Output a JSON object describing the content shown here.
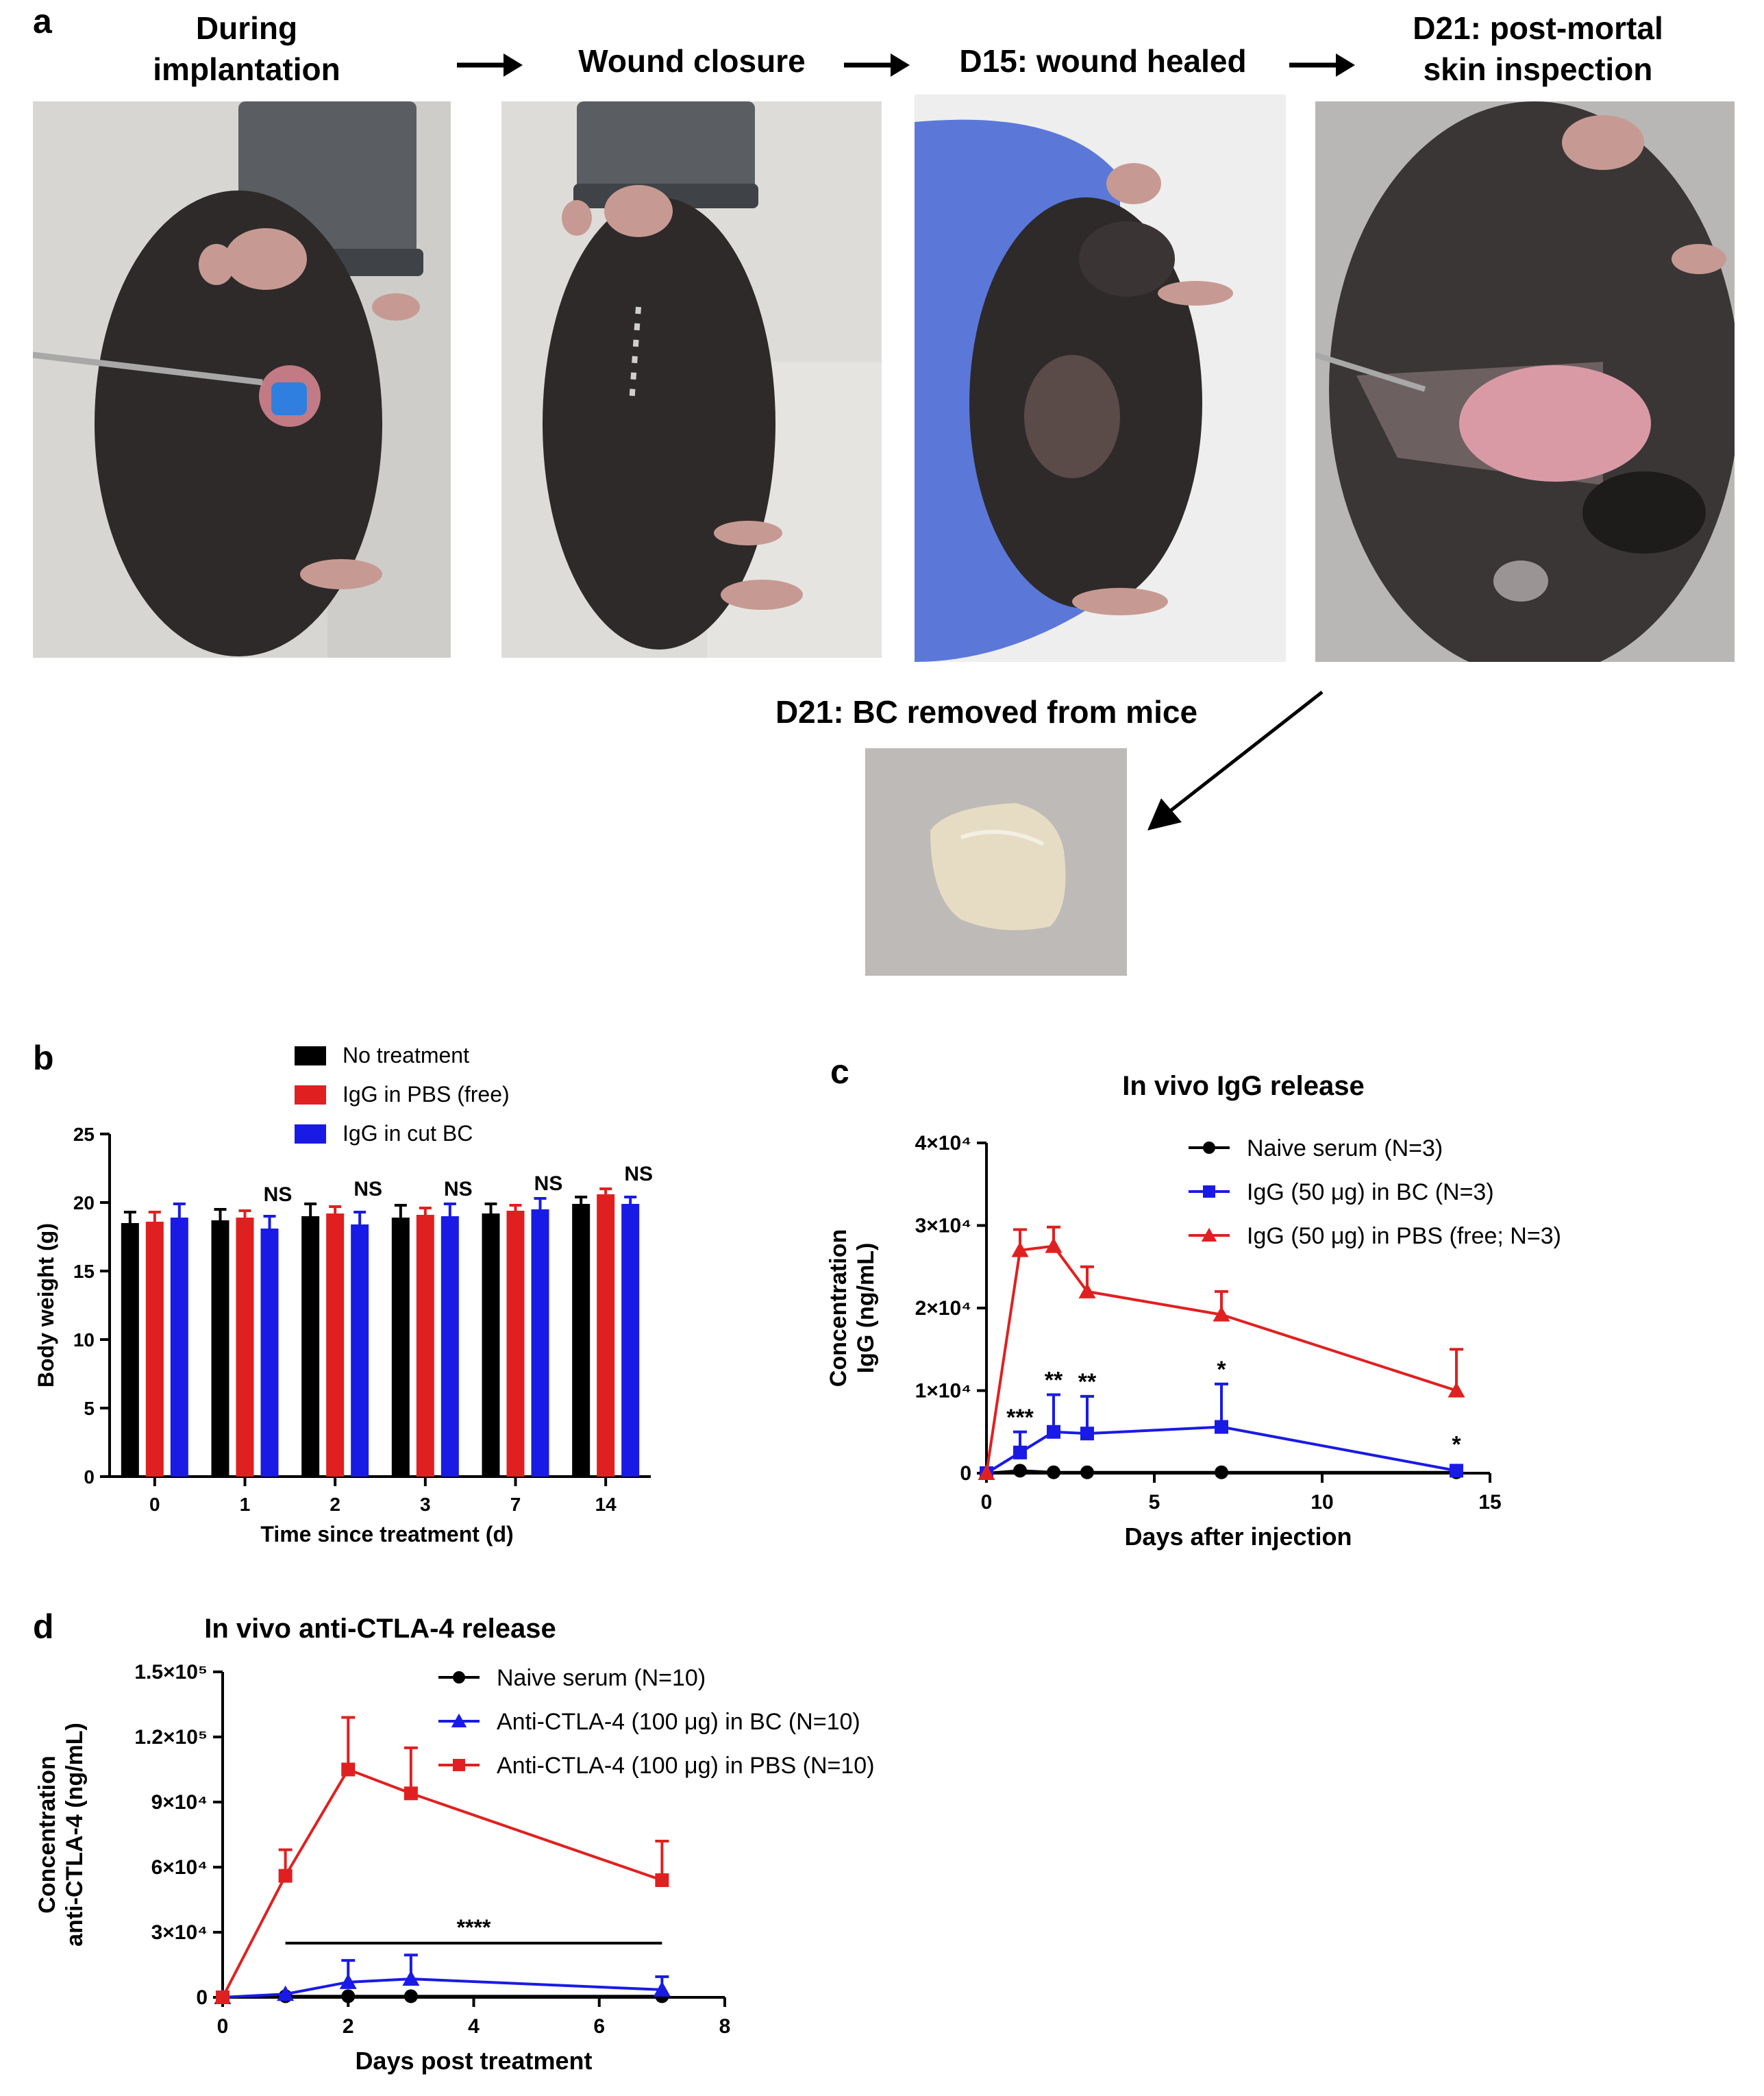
{
  "panel_a": {
    "letter": "a",
    "captions": {
      "step1": "During\nimplantation",
      "step2": "Wound closure",
      "step3": "D15: wound healed",
      "step4": "D21: post-mortal\nskin inspection",
      "removed": "D21: BC removed from mice"
    },
    "colors": {
      "mouse": "#2e2a2a",
      "background": "#d9d7d4",
      "glove": "#5b78d8",
      "bc": "#e6dcc3",
      "dye": "#2f7fe0"
    }
  },
  "chart_data": [
    {
      "panel": "b",
      "type": "bar",
      "title": "",
      "xlabel": "Time since treatment (d)",
      "ylabel": "Body weight (g)",
      "ylim": [
        0,
        25
      ],
      "yticks": [
        "0",
        "5",
        "10",
        "15",
        "20",
        "25"
      ],
      "categories": [
        "0",
        "1",
        "2",
        "3",
        "7",
        "14"
      ],
      "series": [
        {
          "name": "No treatment",
          "color": "#000000",
          "values": [
            18.5,
            18.7,
            19.0,
            18.9,
            19.2,
            19.9
          ],
          "err": [
            0.8,
            0.8,
            0.9,
            0.9,
            0.7,
            0.5
          ]
        },
        {
          "name": "IgG in PBS (free)",
          "color": "#e02020",
          "values": [
            18.6,
            18.9,
            19.2,
            19.1,
            19.4,
            20.6
          ],
          "err": [
            0.7,
            0.5,
            0.5,
            0.5,
            0.4,
            0.4
          ]
        },
        {
          "name": "IgG in cut BC",
          "color": "#1a1ae6",
          "values": [
            18.9,
            18.1,
            18.4,
            19.0,
            19.5,
            19.9
          ],
          "err": [
            1.0,
            0.9,
            0.9,
            0.9,
            0.8,
            0.5
          ]
        }
      ],
      "annotations": [
        "NS",
        "NS",
        "NS",
        "NS",
        "NS"
      ],
      "legend": "top"
    },
    {
      "panel": "c",
      "type": "line",
      "title": "In vivo IgG release",
      "xlabel": "Days after injection",
      "ylabel": "Concentration\nIgG (ng/mL)",
      "xlim": [
        0,
        15
      ],
      "ylim": [
        0,
        40000
      ],
      "xticks": [
        "0",
        "5",
        "10",
        "15"
      ],
      "yticks": [
        "0",
        "1×10⁴",
        "2×10⁴",
        "3×10⁴",
        "4×10⁴"
      ],
      "series": [
        {
          "name": "Naive serum (N=3)",
          "color": "#000000",
          "marker": "circle",
          "x": [
            0,
            1,
            2,
            3,
            7,
            14
          ],
          "y": [
            0,
            300,
            100,
            100,
            100,
            100
          ],
          "err": [
            0,
            0,
            0,
            0,
            0,
            0
          ]
        },
        {
          "name": "IgG (50 μg) in BC (N=3)",
          "color": "#1a1ae6",
          "marker": "square",
          "x": [
            0,
            1,
            2,
            3,
            7,
            14
          ],
          "y": [
            0,
            2500,
            5000,
            4800,
            5600,
            300
          ],
          "err": [
            0,
            2500,
            4500,
            4500,
            5200,
            0
          ]
        },
        {
          "name": "IgG (50 μg) in PBS (free; N=3)",
          "color": "#e02020",
          "marker": "triangle",
          "x": [
            0,
            1,
            2,
            3,
            7,
            14
          ],
          "y": [
            0,
            27000,
            27500,
            22000,
            19200,
            10000
          ],
          "err": [
            0,
            2500,
            2300,
            3000,
            2800,
            5000
          ]
        }
      ],
      "annotations": [
        {
          "x": 1,
          "text": "***"
        },
        {
          "x": 2,
          "text": "**"
        },
        {
          "x": 3,
          "text": "**"
        },
        {
          "x": 7,
          "text": "*"
        },
        {
          "x": 14,
          "text": "*"
        }
      ],
      "legend": "top-right"
    },
    {
      "panel": "d",
      "type": "line",
      "title": "In vivo anti-CTLA-4 release",
      "xlabel": "Days post treatment",
      "ylabel": "Concentration\nanti-CTLA-4 (ng/mL)",
      "xlim": [
        0,
        8
      ],
      "ylim": [
        0,
        150000
      ],
      "xticks": [
        "0",
        "2",
        "4",
        "6",
        "8"
      ],
      "yticks": [
        "0",
        "3×10⁴",
        "6×10⁴",
        "9×10⁴",
        "1.2×10⁵",
        "1.5×10⁵"
      ],
      "series": [
        {
          "name": "Naive serum (N=10)",
          "color": "#000000",
          "marker": "circle",
          "x": [
            0,
            1,
            2,
            3,
            7
          ],
          "y": [
            0,
            500,
            500,
            500,
            500
          ],
          "err": [
            0,
            0,
            0,
            0,
            0
          ]
        },
        {
          "name": "Anti-CTLA-4 (100 μg) in BC (N=10)",
          "color": "#1a1ae6",
          "marker": "triangle",
          "x": [
            0,
            1,
            2,
            3,
            7
          ],
          "y": [
            0,
            1500,
            7000,
            8500,
            3500
          ],
          "err": [
            0,
            0,
            10000,
            11000,
            6000
          ]
        },
        {
          "name": "Anti-CTLA-4 (100 μg) in PBS (N=10)",
          "color": "#e02020",
          "marker": "square",
          "x": [
            0,
            1,
            2,
            3,
            7
          ],
          "y": [
            0,
            56000,
            105000,
            94000,
            54000
          ],
          "err": [
            0,
            12000,
            24000,
            21000,
            18000
          ]
        }
      ],
      "significance": {
        "x_start": 1,
        "x_end": 7,
        "y": 25000,
        "text": "****"
      },
      "legend": "top"
    }
  ]
}
